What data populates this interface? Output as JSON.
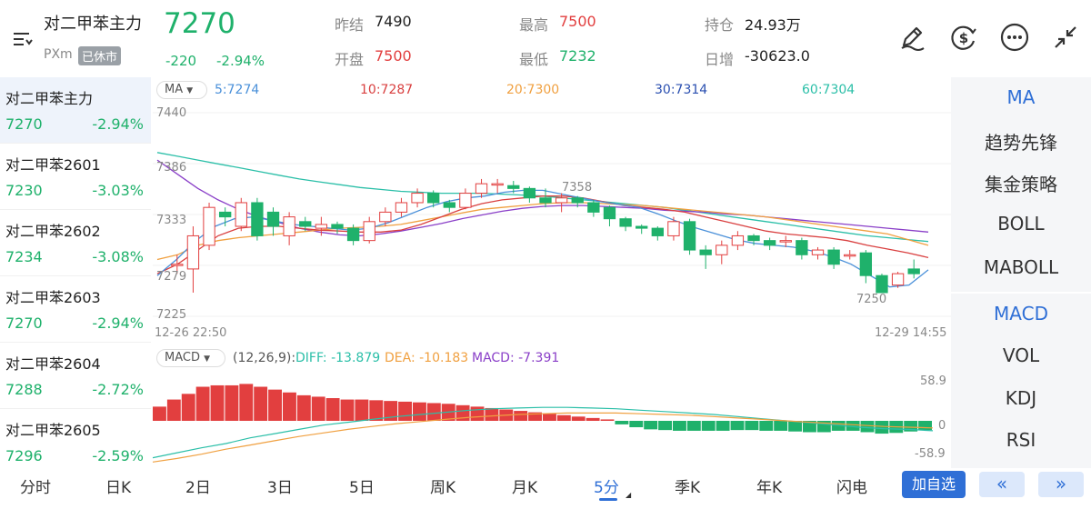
{
  "header": {
    "title": "对二甲苯主力",
    "exchange": "PXm",
    "status": "已休市",
    "price": "7270",
    "change": "-220",
    "change_pct": "-2.94%",
    "prev_close_label": "昨结",
    "prev_close": "7490",
    "open_label": "开盘",
    "open": "7500",
    "high_label": "最高",
    "high": "7500",
    "low_label": "最低",
    "low": "7232",
    "oi_label": "持仓",
    "oi": "24.93万",
    "oi_chg_label": "日增",
    "oi_chg": "-30623.0"
  },
  "contracts": [
    {
      "name": "对二甲苯主力",
      "price": "7270",
      "change": "-2.94%"
    },
    {
      "name": "对二甲苯2601",
      "price": "7230",
      "change": "-3.03%"
    },
    {
      "name": "对二甲苯2602",
      "price": "7234",
      "change": "-3.08%"
    },
    {
      "name": "对二甲苯2603",
      "price": "7270",
      "change": "-2.94%"
    },
    {
      "name": "对二甲苯2604",
      "price": "7288",
      "change": "-2.72%"
    },
    {
      "name": "对二甲苯2605",
      "price": "7296",
      "change": "-2.59%"
    }
  ],
  "indicators": [
    "MA",
    "趋势先锋",
    "集金策略",
    "BOLL",
    "MABOLL",
    "MACD",
    "VOL",
    "KDJ",
    "RSI"
  ],
  "ma_legend": {
    "selector": "MA",
    "ma5": "5:7274",
    "ma10": "10:7287",
    "ma20": "20:7300",
    "ma30": "30:7314",
    "ma60": "60:7304"
  },
  "colors": {
    "up": "#e23f3f",
    "down": "#1fb16b",
    "ma5": "#4a90d9",
    "ma10": "#d94040",
    "ma20": "#f0a040",
    "ma30": "#8a3fc8",
    "ma60": "#2bbfa8",
    "accent": "#2f6fd6"
  },
  "price_axis": {
    "top": "7440",
    "l2": "7386",
    "l3": "7333",
    "l4": "7279",
    "bottom": "7225"
  },
  "time_axis": {
    "start": "12-26 22:50",
    "end": "12-29 14:55"
  },
  "annotations": {
    "high_mark": "7358",
    "low_mark": "7250"
  },
  "macd_legend": {
    "selector": "MACD",
    "params": "(12,26,9):",
    "diff": "DIFF: -13.879",
    "dea": "DEA: -10.183",
    "macd": "MACD: -7.391"
  },
  "macd_axis": {
    "top": "58.9",
    "mid": "0",
    "bottom": "-58.9"
  },
  "tabs": [
    "分时",
    "日K",
    "2日",
    "3日",
    "5日",
    "周K",
    "月K",
    "5分",
    "季K",
    "年K",
    "闪电"
  ],
  "active_tab": "5分",
  "add_watchlist": "加自选",
  "prev_btn": "«",
  "next_btn": "»",
  "chart_data": {
    "type": "candlestick",
    "y_range": [
      7225,
      7440
    ],
    "candles": [
      {
        "o": 7280,
        "c": 7280,
        "h": 7290,
        "l": 7270
      },
      {
        "o": 7275,
        "c": 7310,
        "h": 7320,
        "l": 7250
      },
      {
        "o": 7300,
        "c": 7340,
        "h": 7345,
        "l": 7295
      },
      {
        "o": 7335,
        "c": 7330,
        "h": 7340,
        "l": 7320
      },
      {
        "o": 7320,
        "c": 7345,
        "h": 7350,
        "l": 7315
      },
      {
        "o": 7345,
        "c": 7310,
        "h": 7350,
        "l": 7305
      },
      {
        "o": 7335,
        "c": 7320,
        "h": 7340,
        "l": 7310
      },
      {
        "o": 7310,
        "c": 7330,
        "h": 7335,
        "l": 7300
      },
      {
        "o": 7325,
        "c": 7320,
        "h": 7330,
        "l": 7315
      },
      {
        "o": 7318,
        "c": 7322,
        "h": 7330,
        "l": 7310
      },
      {
        "o": 7322,
        "c": 7318,
        "h": 7325,
        "l": 7312
      },
      {
        "o": 7318,
        "c": 7305,
        "h": 7322,
        "l": 7300
      },
      {
        "o": 7305,
        "c": 7325,
        "h": 7330,
        "l": 7302
      },
      {
        "o": 7325,
        "c": 7335,
        "h": 7340,
        "l": 7320
      },
      {
        "o": 7335,
        "c": 7345,
        "h": 7350,
        "l": 7330
      },
      {
        "o": 7345,
        "c": 7355,
        "h": 7360,
        "l": 7340
      },
      {
        "o": 7355,
        "c": 7345,
        "h": 7358,
        "l": 7340
      },
      {
        "o": 7345,
        "c": 7340,
        "h": 7348,
        "l": 7335
      },
      {
        "o": 7340,
        "c": 7355,
        "h": 7360,
        "l": 7338
      },
      {
        "o": 7355,
        "c": 7365,
        "h": 7370,
        "l": 7350
      },
      {
        "o": 7365,
        "c": 7365,
        "h": 7370,
        "l": 7355
      },
      {
        "o": 7363,
        "c": 7360,
        "h": 7368,
        "l": 7355
      },
      {
        "o": 7360,
        "c": 7350,
        "h": 7362,
        "l": 7345
      },
      {
        "o": 7350,
        "c": 7345,
        "h": 7360,
        "l": 7340
      },
      {
        "o": 7345,
        "c": 7350,
        "h": 7355,
        "l": 7335
      },
      {
        "o": 7350,
        "c": 7345,
        "h": 7352,
        "l": 7340
      },
      {
        "o": 7345,
        "c": 7335,
        "h": 7348,
        "l": 7330
      },
      {
        "o": 7340,
        "c": 7328,
        "h": 7342,
        "l": 7320
      },
      {
        "o": 7328,
        "c": 7320,
        "h": 7330,
        "l": 7315
      },
      {
        "o": 7320,
        "c": 7318,
        "h": 7322,
        "l": 7312
      },
      {
        "o": 7318,
        "c": 7310,
        "h": 7320,
        "l": 7305
      },
      {
        "o": 7310,
        "c": 7325,
        "h": 7330,
        "l": 7305
      },
      {
        "o": 7325,
        "c": 7295,
        "h": 7328,
        "l": 7290
      },
      {
        "o": 7295,
        "c": 7290,
        "h": 7300,
        "l": 7275
      },
      {
        "o": 7290,
        "c": 7300,
        "h": 7305,
        "l": 7280
      },
      {
        "o": 7300,
        "c": 7310,
        "h": 7315,
        "l": 7295
      },
      {
        "o": 7310,
        "c": 7305,
        "h": 7312,
        "l": 7300
      },
      {
        "o": 7305,
        "c": 7300,
        "h": 7308,
        "l": 7295
      },
      {
        "o": 7305,
        "c": 7305,
        "h": 7310,
        "l": 7298
      },
      {
        "o": 7305,
        "c": 7290,
        "h": 7308,
        "l": 7285
      },
      {
        "o": 7290,
        "c": 7295,
        "h": 7298,
        "l": 7285
      },
      {
        "o": 7295,
        "c": 7280,
        "h": 7298,
        "l": 7275
      },
      {
        "o": 7290,
        "c": 7290,
        "h": 7295,
        "l": 7285
      },
      {
        "o": 7292,
        "c": 7268,
        "h": 7295,
        "l": 7260
      },
      {
        "o": 7268,
        "c": 7250,
        "h": 7270,
        "l": 7250
      },
      {
        "o": 7258,
        "c": 7270,
        "h": 7272,
        "l": 7255
      },
      {
        "o": 7275,
        "c": 7270,
        "h": 7285,
        "l": 7265
      }
    ],
    "ma_series": [
      {
        "name": "60",
        "values": [
          7398,
          7394,
          7390,
          7386,
          7382,
          7378,
          7374,
          7370,
          7367,
          7364,
          7361,
          7359,
          7357,
          7356,
          7355,
          7355,
          7355,
          7354,
          7353,
          7352,
          7350,
          7348,
          7346,
          7344,
          7342,
          7340,
          7337,
          7334,
          7331,
          7328,
          7325,
          7322,
          7319,
          7316,
          7313,
          7310,
          7308,
          7306,
          7304
        ]
      },
      {
        "name": "30",
        "values": [
          7390,
          7375,
          7360,
          7348,
          7338,
          7330,
          7324,
          7318,
          7314,
          7311,
          7310,
          7312,
          7315,
          7319,
          7323,
          7328,
          7332,
          7336,
          7339,
          7341,
          7342,
          7342,
          7341,
          7340,
          7339,
          7337,
          7336,
          7335,
          7333,
          7332,
          7330,
          7328,
          7326,
          7324,
          7322,
          7320,
          7318,
          7316,
          7314
        ]
      },
      {
        "name": "20",
        "values": [
          7285,
          7290,
          7300,
          7305,
          7308,
          7310,
          7312,
          7314,
          7316,
          7318,
          7319,
          7320,
          7322,
          7326,
          7330,
          7334,
          7338,
          7340,
          7342,
          7344,
          7345,
          7345,
          7344,
          7343,
          7342,
          7340,
          7338,
          7336,
          7334,
          7332,
          7330,
          7327,
          7324,
          7321,
          7318,
          7315,
          7312,
          7306,
          7300
        ]
      },
      {
        "name": "10",
        "values": [
          7270,
          7280,
          7295,
          7310,
          7318,
          7320,
          7320,
          7318,
          7316,
          7315,
          7314,
          7314,
          7316,
          7322,
          7330,
          7338,
          7344,
          7348,
          7350,
          7352,
          7352,
          7350,
          7346,
          7342,
          7340,
          7338,
          7335,
          7330,
          7325,
          7320,
          7315,
          7312,
          7310,
          7308,
          7305,
          7300,
          7296,
          7292,
          7287
        ]
      },
      {
        "name": "5",
        "values": [
          7268,
          7285,
          7305,
          7320,
          7328,
          7330,
          7326,
          7322,
          7320,
          7318,
          7316,
          7318,
          7324,
          7332,
          7340,
          7346,
          7350,
          7352,
          7356,
          7358,
          7358,
          7354,
          7350,
          7346,
          7343,
          7340,
          7333,
          7325,
          7318,
          7312,
          7306,
          7302,
          7300,
          7298,
          7294,
          7288,
          7280,
          7268,
          7256,
          7258,
          7274
        ]
      }
    ],
    "macd_range": [
      -58.9,
      58.9
    ],
    "macd_hist": [
      20,
      30,
      38,
      48,
      50,
      50,
      52,
      48,
      44,
      40,
      36,
      34,
      32,
      30,
      30,
      29,
      28,
      27,
      26,
      25,
      24,
      22,
      20,
      18,
      16,
      14,
      12,
      10,
      8,
      6,
      4,
      2,
      -5,
      -9,
      -12,
      -13,
      -14,
      -14,
      -14,
      -14,
      -13,
      -13,
      -14,
      -14,
      -15,
      -16,
      -16,
      -14,
      -14,
      -16,
      -18,
      -17,
      -15,
      -13
    ],
    "diff": [
      -52,
      -45,
      -38,
      -32,
      -24,
      -18,
      -12,
      -6,
      -2,
      2,
      6,
      9,
      12,
      15,
      17,
      18,
      19,
      19,
      18,
      17,
      15,
      13,
      11,
      9,
      6,
      3,
      0,
      -3,
      -6,
      -9,
      -11,
      -12,
      -14
    ],
    "dea": [
      -58,
      -53,
      -47,
      -40,
      -34,
      -28,
      -22,
      -17,
      -12,
      -8,
      -4,
      -1,
      2,
      5,
      7,
      9,
      10,
      11,
      11,
      11,
      10,
      9,
      8,
      6,
      4,
      2,
      0,
      -2,
      -4,
      -6,
      -8,
      -9,
      -10
    ]
  }
}
